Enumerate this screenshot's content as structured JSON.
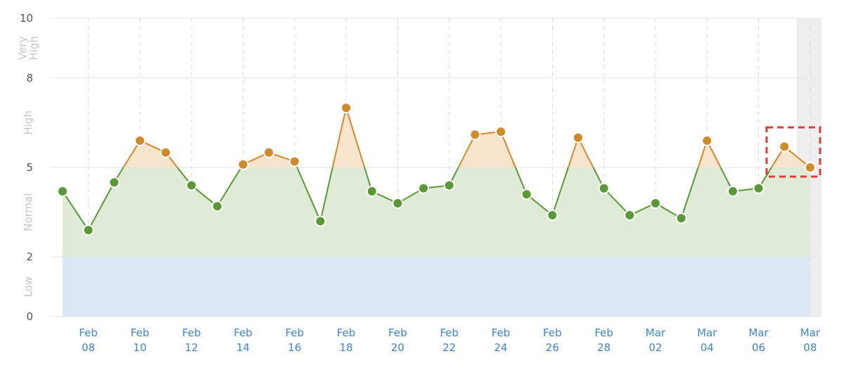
{
  "chart_data": {
    "type": "line",
    "ylim": [
      0,
      10
    ],
    "y_ticks": [
      "0",
      "2",
      "5",
      "8",
      "10"
    ],
    "bands": [
      {
        "label": "Low",
        "from": 0,
        "to": 2,
        "color": "#dce6f2"
      },
      {
        "label": "Normal",
        "from": 2,
        "to": 5,
        "color": "#dfebd6"
      },
      {
        "label": "High",
        "from": 5,
        "to": 8,
        "color": "#f7e4cc"
      },
      {
        "label": "Very High",
        "label_lines": [
          "Very",
          "High"
        ],
        "from": 8,
        "to": 10,
        "color": "#ffffff"
      }
    ],
    "x_tick_labels": [
      [
        "Feb",
        "08"
      ],
      [
        "Feb",
        "10"
      ],
      [
        "Feb",
        "12"
      ],
      [
        "Feb",
        "14"
      ],
      [
        "Feb",
        "16"
      ],
      [
        "Feb",
        "18"
      ],
      [
        "Feb",
        "20"
      ],
      [
        "Feb",
        "22"
      ],
      [
        "Feb",
        "24"
      ],
      [
        "Feb",
        "26"
      ],
      [
        "Feb",
        "28"
      ],
      [
        "Mar",
        "02"
      ],
      [
        "Mar",
        "04"
      ],
      [
        "Mar",
        "06"
      ],
      [
        "Mar",
        "08"
      ]
    ],
    "x": [
      "Feb 07",
      "Feb 08",
      "Feb 09",
      "Feb 10",
      "Feb 11",
      "Feb 12",
      "Feb 13",
      "Feb 14",
      "Feb 15",
      "Feb 16",
      "Feb 17",
      "Feb 18",
      "Feb 19",
      "Feb 20",
      "Feb 21",
      "Feb 22",
      "Feb 23",
      "Feb 24",
      "Feb 25",
      "Feb 26",
      "Feb 27",
      "Feb 28",
      "Mar 01",
      "Mar 02",
      "Mar 03",
      "Mar 04",
      "Mar 05",
      "Mar 06",
      "Mar 07",
      "Mar 08"
    ],
    "values": [
      4.2,
      2.9,
      4.5,
      5.9,
      5.5,
      4.4,
      3.7,
      5.1,
      5.5,
      5.2,
      3.2,
      7.0,
      4.2,
      3.8,
      4.3,
      4.4,
      6.1,
      6.2,
      4.1,
      3.4,
      6.0,
      4.3,
      3.4,
      3.8,
      3.3,
      5.9,
      4.2,
      4.3,
      5.7,
      5.0
    ],
    "grid": true,
    "colors": {
      "normal_line": "#5a9a35",
      "normal_point": "#5a9a35",
      "high_line": "#d9892a",
      "high_point": "#d08a2a",
      "point_stroke": "#ffffff",
      "grid": "#e5e5e5",
      "highlight_column": "#eeeeee",
      "annotation_box": "#e53935",
      "x_tick_text": "#3d86d1"
    }
  }
}
